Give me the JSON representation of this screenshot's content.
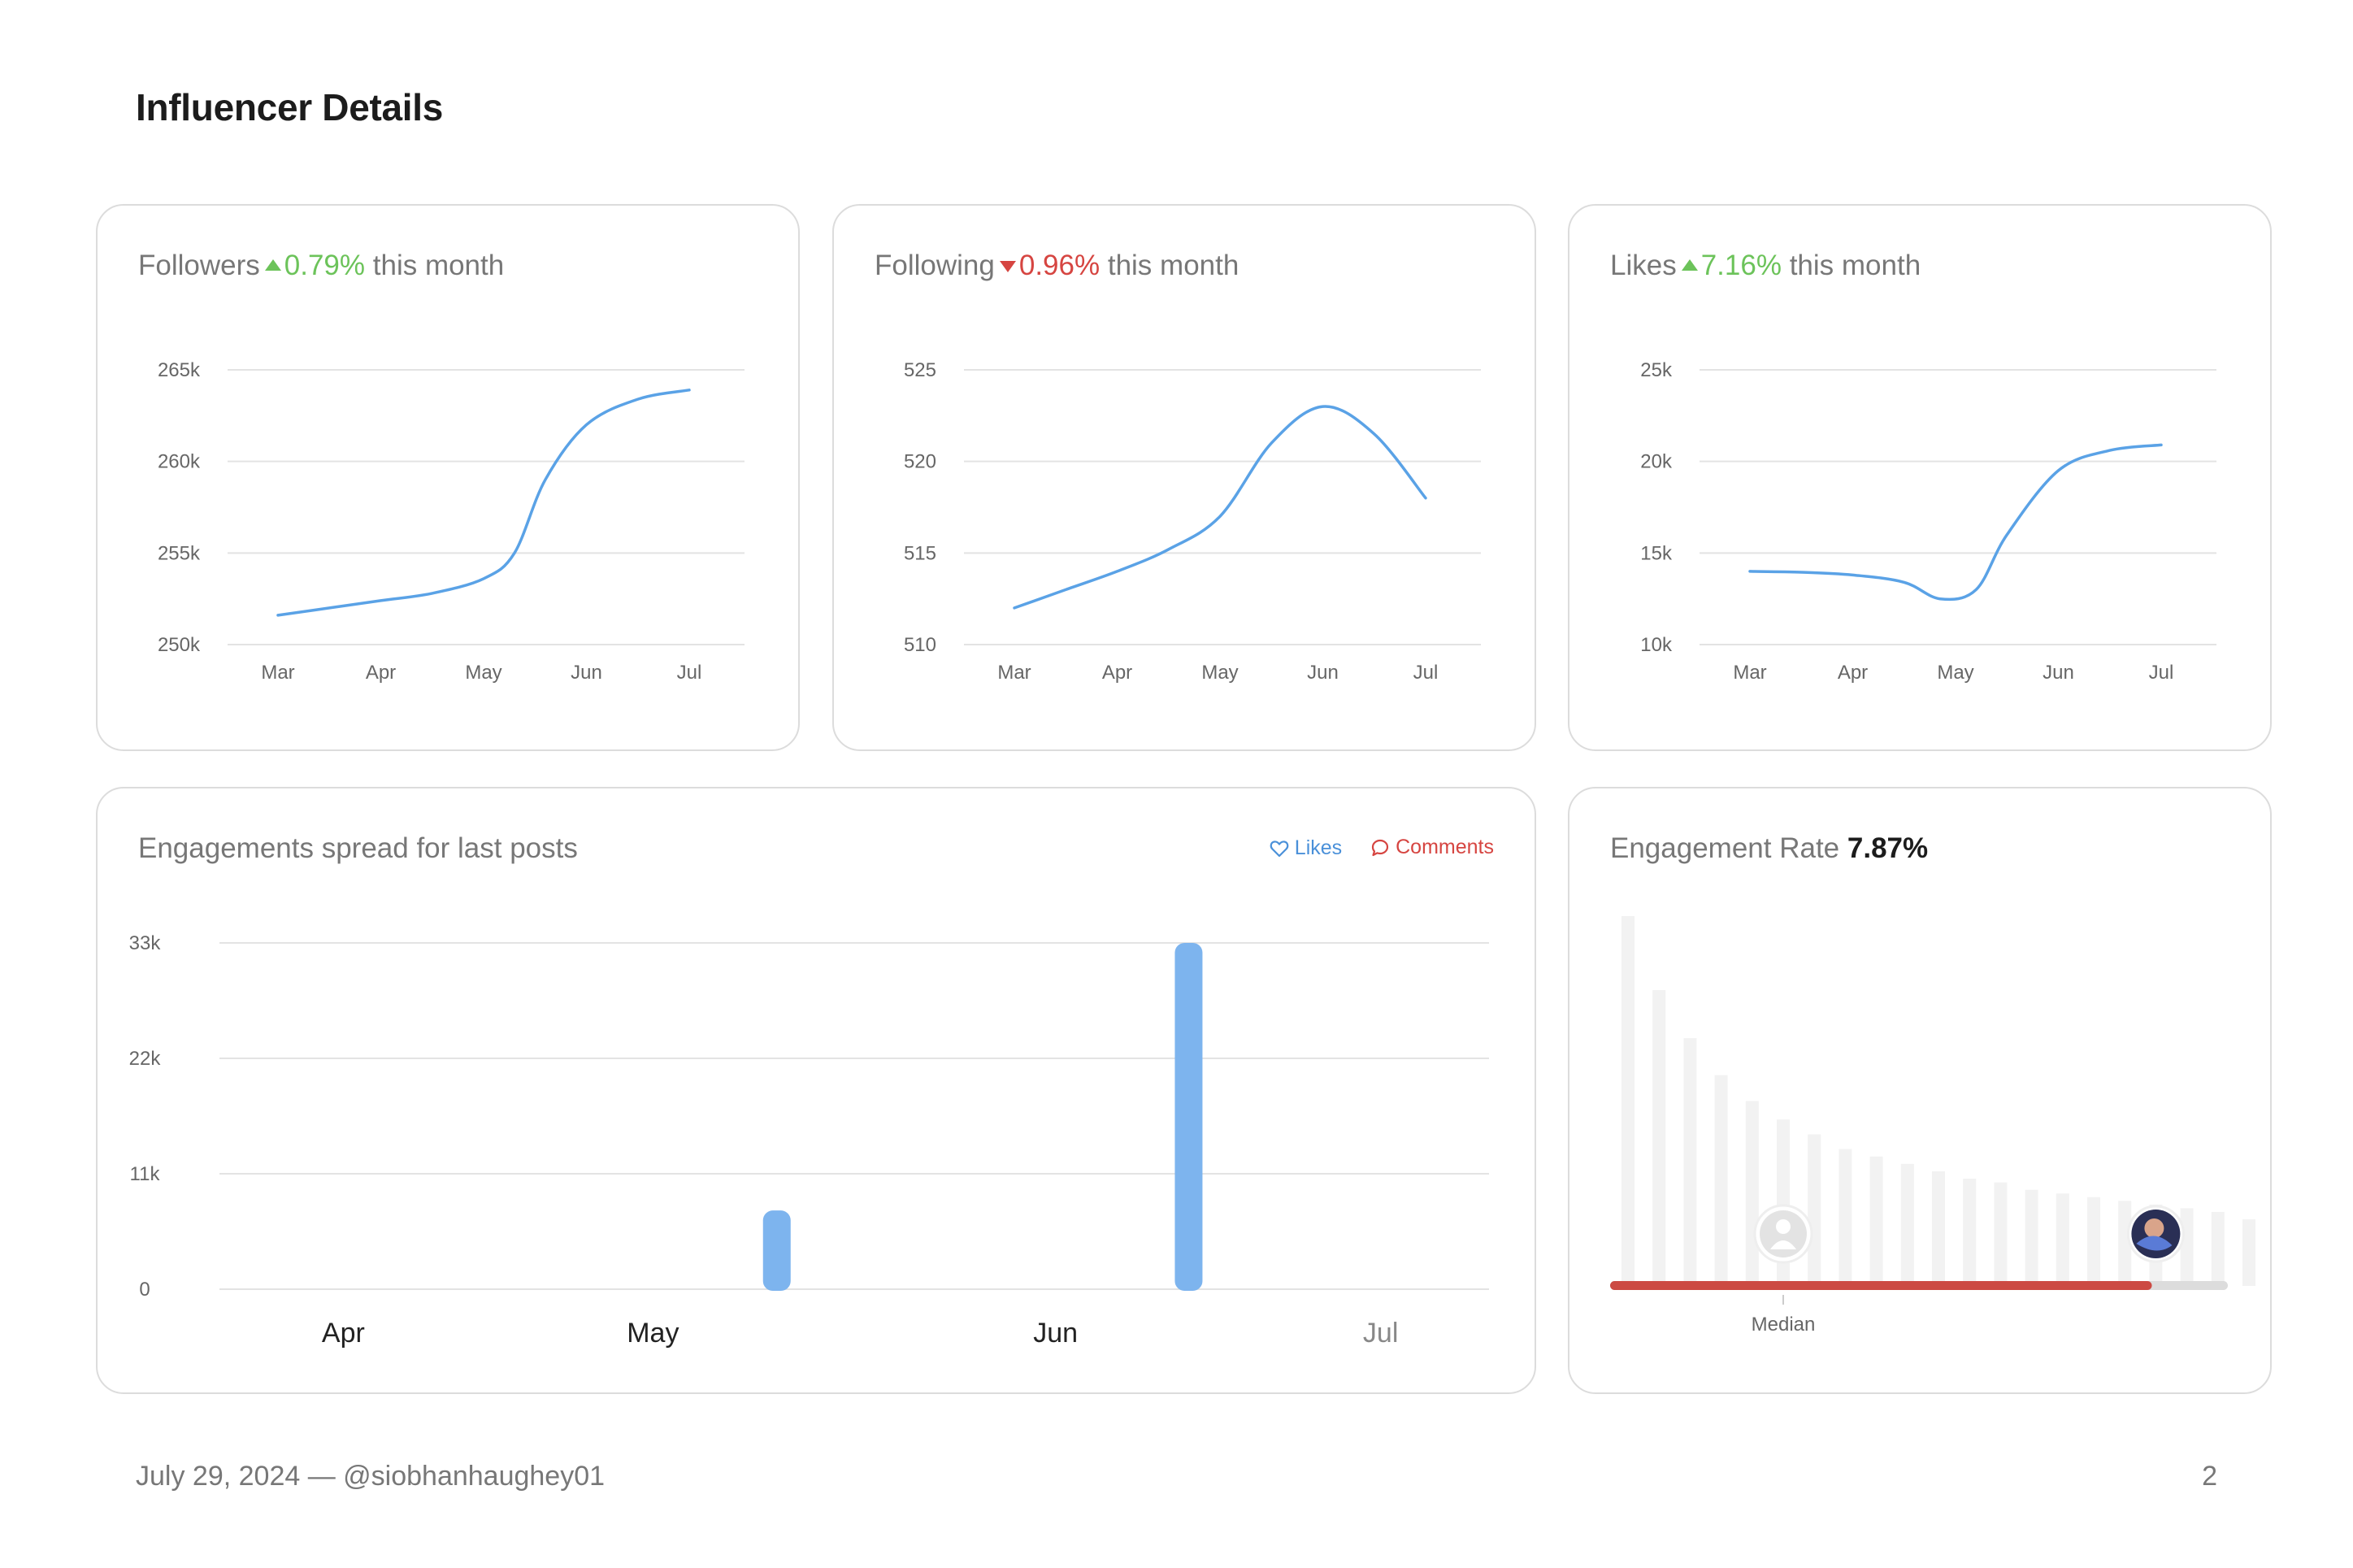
{
  "page": {
    "title": "Influencer Details",
    "footer_text": "July 29, 2024 — @siobhanhaughey01",
    "page_number": "2"
  },
  "colors": {
    "line": "#5aa2e6",
    "bar_likes": "#7db4ee",
    "up": "#6cc35a",
    "down": "#d64541",
    "grid": "#e3e3e3",
    "gauge_fill": "#cc4a43",
    "gauge_track": "#dcdcdc"
  },
  "cards": {
    "followers": {
      "label": "Followers",
      "change": "0.79%",
      "direction": "up",
      "suffix": "this month"
    },
    "following": {
      "label": "Following",
      "change": "0.96%",
      "direction": "down",
      "suffix": "this month"
    },
    "likes": {
      "label": "Likes",
      "change": "7.16%",
      "direction": "up",
      "suffix": "this month"
    },
    "engagements": {
      "title": "Engagements spread for last posts",
      "legend_likes": "Likes",
      "legend_comments": "Comments"
    },
    "engagement_rate": {
      "label": "Engagement Rate",
      "value": "7.87%",
      "median_label": "Median"
    }
  },
  "chart_data": [
    {
      "id": "followers",
      "type": "line",
      "categories": [
        "Mar",
        "Apr",
        "May",
        "Jun",
        "Jul"
      ],
      "x": [
        0,
        0.5,
        1,
        1.5,
        2,
        2.3,
        2.6,
        3,
        3.5,
        4
      ],
      "values": [
        251600,
        252000,
        252400,
        252800,
        253600,
        255000,
        259000,
        262000,
        263400,
        263900
      ],
      "yticks": [
        "265k",
        "260k",
        "255k",
        "250k"
      ],
      "ylim": [
        250000,
        265000
      ],
      "grid": true
    },
    {
      "id": "following",
      "type": "line",
      "categories": [
        "Mar",
        "Apr",
        "May",
        "Jun",
        "Jul"
      ],
      "x": [
        0,
        0.5,
        1,
        1.5,
        2,
        2.5,
        3,
        3.5,
        4
      ],
      "values": [
        512,
        513,
        514,
        515.2,
        517,
        521,
        523,
        521.5,
        518
      ],
      "yticks": [
        "525",
        "520",
        "515",
        "510"
      ],
      "ylim": [
        510,
        525
      ],
      "grid": true
    },
    {
      "id": "likes",
      "type": "line",
      "categories": [
        "Mar",
        "Apr",
        "May",
        "Jun",
        "Jul"
      ],
      "x": [
        0,
        0.5,
        1,
        1.5,
        1.85,
        2.2,
        2.5,
        3,
        3.5,
        4
      ],
      "values": [
        14000,
        13950,
        13800,
        13400,
        12500,
        13000,
        16000,
        19500,
        20600,
        20900
      ],
      "yticks": [
        "25k",
        "20k",
        "15k",
        "10k"
      ],
      "ylim": [
        10000,
        25000
      ],
      "grid": true
    },
    {
      "id": "engagements",
      "type": "bar",
      "series": [
        {
          "name": "Likes",
          "x": [
            1.4,
            2.73
          ],
          "values": [
            7500,
            33000
          ]
        }
      ],
      "xtick_labels": [
        "Apr",
        "May",
        "Jun",
        "Jul"
      ],
      "xtick_positions": [
        0,
        1,
        2.3,
        3.35
      ],
      "xlim": [
        -0.4,
        3.7
      ],
      "yticks": [
        "33k",
        "22k",
        "11k",
        "0"
      ],
      "ylim": [
        0,
        33000
      ],
      "grid": true,
      "legend": "top-right"
    },
    {
      "id": "engagement_rate",
      "type": "bar",
      "values": [
        100,
        80,
        67,
        57,
        50,
        45,
        41,
        37,
        35,
        33,
        31,
        29,
        28,
        26,
        25,
        24,
        23,
        22,
        21,
        20,
        18
      ],
      "fill_fraction": 0.877,
      "median_index": 5,
      "marker_index": 17,
      "value": "7.87%"
    }
  ]
}
